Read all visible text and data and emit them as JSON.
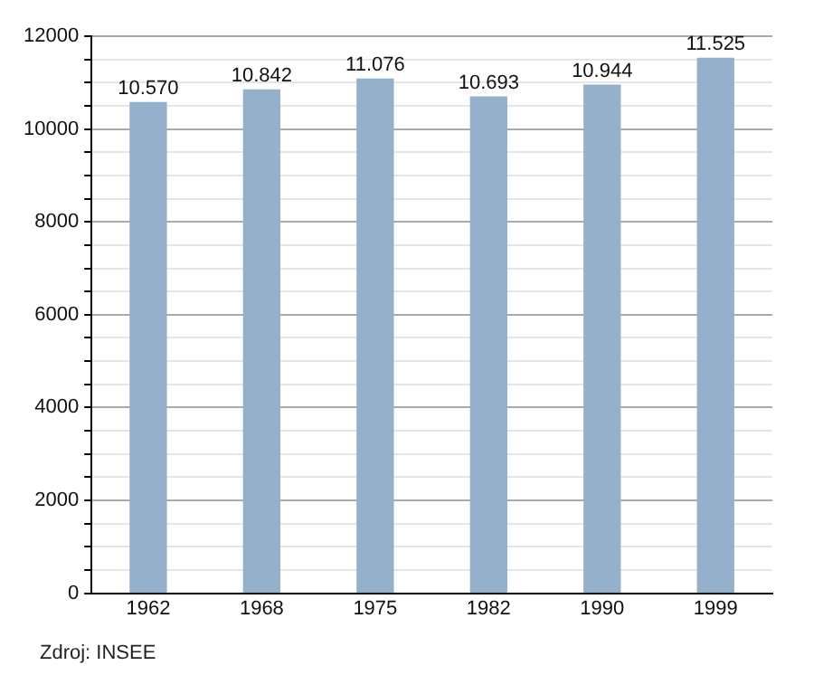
{
  "chart_data": {
    "type": "bar",
    "categories": [
      "1962",
      "1968",
      "1975",
      "1982",
      "1990",
      "1999"
    ],
    "values": [
      10570,
      10842,
      11076,
      10693,
      10944,
      11525
    ],
    "value_labels": [
      "10.570",
      "10.842",
      "11.076",
      "10.693",
      "10.944",
      "11.525"
    ],
    "color": "#94b0cb",
    "ylim": [
      0,
      12000
    ],
    "yticks": [
      0,
      {
        "value": 500,
        "label": null
      },
      {
        "value": 1000,
        "label": null
      },
      {
        "value": 1500,
        "label": null
      },
      2000,
      {
        "value": 2500,
        "label": null
      },
      {
        "value": 3000,
        "label": null
      },
      {
        "value": 3500,
        "label": null
      },
      4000,
      {
        "value": 4500,
        "label": null
      },
      {
        "value": 5000,
        "label": null
      },
      {
        "value": 5500,
        "label": null
      },
      6000,
      {
        "value": 6500,
        "label": null
      },
      {
        "value": 7000,
        "label": null
      },
      {
        "value": 7500,
        "label": null
      },
      8000,
      {
        "value": 8500,
        "label": null
      },
      {
        "value": 9000,
        "label": null
      },
      {
        "value": 9500,
        "label": null
      },
      10000,
      {
        "value": 10500,
        "label": null
      },
      {
        "value": 11000,
        "label": null
      },
      {
        "value": 11500,
        "label": null
      },
      12000
    ],
    "grid": "y",
    "annotations": [
      "Zdroj: INSEE"
    ]
  }
}
